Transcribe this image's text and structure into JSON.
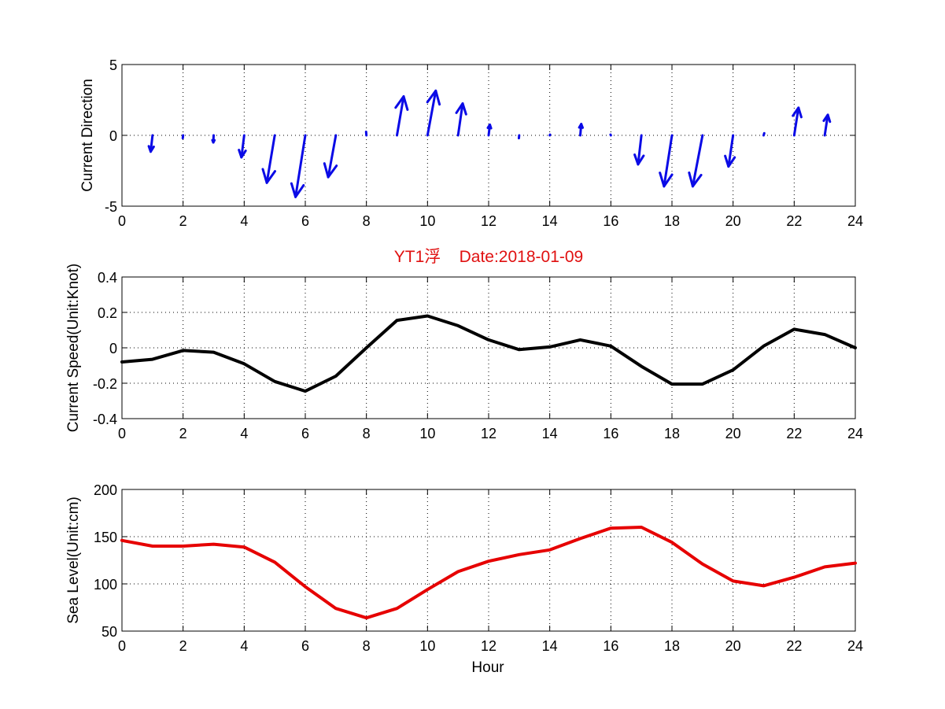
{
  "chart_data": [
    {
      "type": "quiver",
      "ylabel": "Current Direction",
      "xlim": [
        0,
        24
      ],
      "ylim": [
        -5,
        5
      ],
      "xticks": [
        "0",
        "2",
        "4",
        "6",
        "8",
        "10",
        "12",
        "14",
        "16",
        "18",
        "20",
        "22",
        "24"
      ],
      "yticks": [
        "-5",
        "0",
        "5"
      ],
      "grid": true,
      "color": "#0a0ae6",
      "hours": [
        1,
        2,
        3,
        4,
        5,
        6,
        7,
        8,
        9,
        10,
        11,
        12,
        13,
        14,
        15,
        16,
        17,
        18,
        19,
        20,
        21,
        22,
        23
      ],
      "u": [
        -0.06,
        -0.01,
        -0.01,
        -0.09,
        -0.26,
        -0.32,
        -0.25,
        -0.01,
        0.22,
        0.27,
        0.15,
        0.04,
        -0.01,
        0.01,
        0.03,
        -0.01,
        -0.11,
        -0.26,
        -0.32,
        -0.15,
        0.02,
        0.14,
        0.1
      ],
      "v": [
        -1.15,
        -0.2,
        -0.5,
        -1.55,
        -3.35,
        -4.35,
        -2.95,
        0.25,
        2.75,
        3.15,
        2.25,
        0.75,
        -0.2,
        0.05,
        0.8,
        0.05,
        -2.05,
        -3.6,
        -3.6,
        -2.2,
        0.15,
        1.95,
        1.45
      ]
    },
    {
      "type": "line",
      "title": "YT1浮    Date:2018-01-09",
      "ylabel": "Current Speed(Unit:Knot)",
      "xlim": [
        0,
        24
      ],
      "ylim": [
        -0.4,
        0.4
      ],
      "xticks": [
        "0",
        "2",
        "4",
        "6",
        "8",
        "10",
        "12",
        "14",
        "16",
        "18",
        "20",
        "22",
        "24"
      ],
      "yticks": [
        "-0.4",
        "-0.2",
        "0",
        "0.2",
        "0.4"
      ],
      "grid": true,
      "color": "#000000",
      "x": [
        0,
        1,
        2,
        3,
        4,
        5,
        6,
        7,
        8,
        9,
        10,
        11,
        12,
        13,
        14,
        15,
        16,
        17,
        18,
        19,
        20,
        21,
        22,
        23,
        24
      ],
      "y": [
        -0.08,
        -0.065,
        -0.015,
        -0.025,
        -0.09,
        -0.19,
        -0.245,
        -0.16,
        0.0,
        0.155,
        0.18,
        0.125,
        0.045,
        -0.01,
        0.005,
        0.045,
        0.01,
        -0.105,
        -0.205,
        -0.205,
        -0.125,
        0.01,
        0.105,
        0.075,
        0.0
      ]
    },
    {
      "type": "line",
      "xlabel": "Hour",
      "ylabel": "Sea Level(Unit:cm)",
      "xlim": [
        0,
        24
      ],
      "ylim": [
        50,
        200
      ],
      "xticks": [
        "0",
        "2",
        "4",
        "6",
        "8",
        "10",
        "12",
        "14",
        "16",
        "18",
        "20",
        "22",
        "24"
      ],
      "yticks": [
        "50",
        "100",
        "150",
        "200"
      ],
      "grid": true,
      "color": "#e60000",
      "x": [
        0,
        1,
        2,
        3,
        4,
        5,
        6,
        7,
        8,
        9,
        10,
        11,
        12,
        13,
        14,
        15,
        16,
        17,
        18,
        19,
        20,
        21,
        22,
        23,
        24
      ],
      "y": [
        146,
        140,
        140,
        142,
        139,
        123,
        97,
        74,
        64,
        74,
        94,
        113,
        124,
        131,
        136,
        148,
        159,
        160,
        144,
        121,
        103,
        98,
        107,
        118,
        122
      ]
    }
  ]
}
